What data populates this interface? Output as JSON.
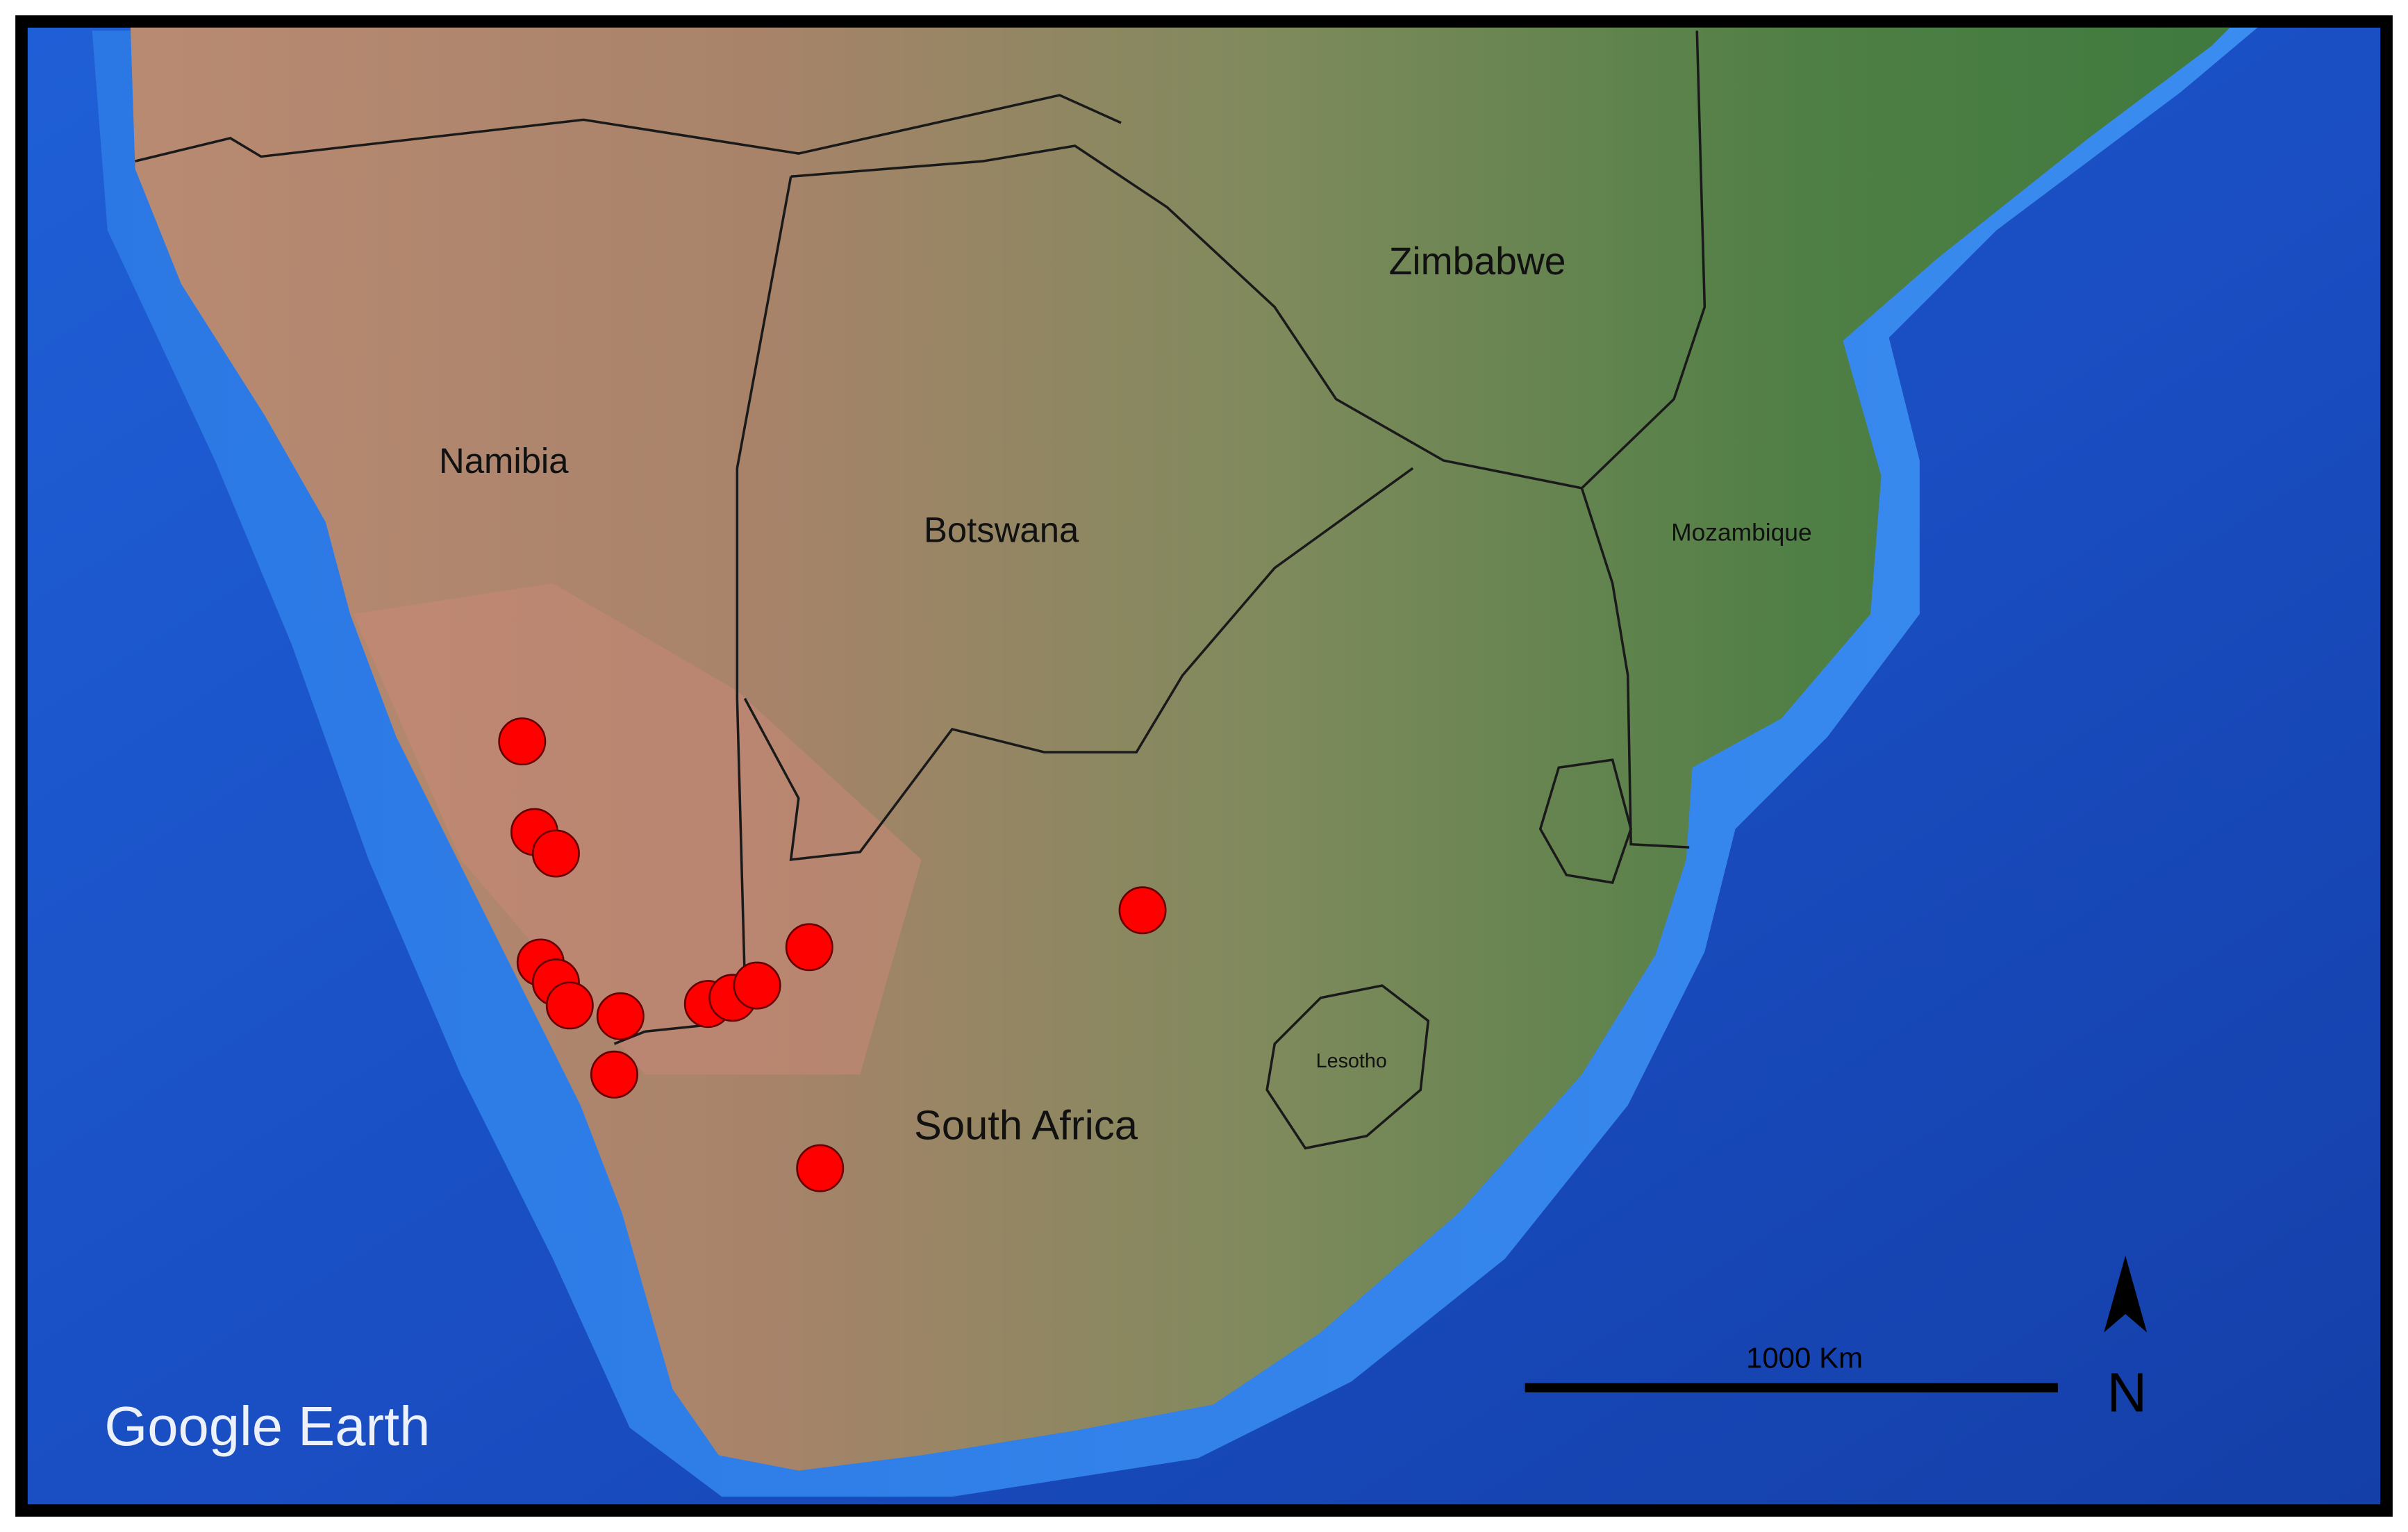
{
  "map": {
    "labels": [
      "Zimbabwe",
      "Namibia",
      "Botswana",
      "Mozambique",
      "Lesotho",
      "South Africa"
    ],
    "scale_bar": "1000 Km",
    "north": "N",
    "attribution": "Google Earth"
  }
}
